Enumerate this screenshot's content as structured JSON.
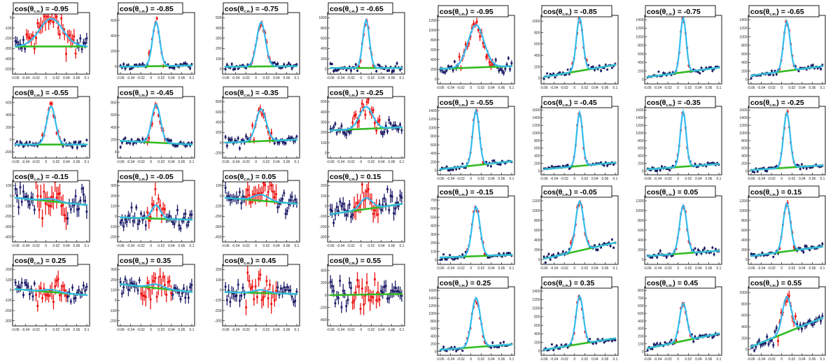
{
  "chart_data": {
    "type": "scatter",
    "x_tick_labels": [
      "-0.06",
      "-0.04",
      "-0.02",
      "0",
      "0.02",
      "0.04",
      "0.06",
      "0.1"
    ],
    "colors": {
      "data_points": "#1a1a66",
      "signal_points": "#ee1111",
      "signal_fit": "#33bbee",
      "background_fit": "#33bb22"
    },
    "panel_groups": [
      {
        "group": "left",
        "panels": [
          {
            "title": "cos(θ",
            "title_sub": "c.m.",
            "title_value": ") = -0.95",
            "yticks": [
              "-500",
              "-400",
              "-300",
              "-200",
              "-100",
              "0"
            ],
            "signal_height": 0.45,
            "noise": 0.16,
            "background": [
              0.45,
              0.45
            ],
            "fit_width": 0.16
          },
          {
            "title": "cos(θ",
            "title_sub": "c.m.",
            "title_value": ") = -0.85",
            "yticks": [
              "0",
              "200",
              "400",
              "600"
            ],
            "signal_height": 0.72,
            "noise": 0.06,
            "background": [
              0.12,
              0.14
            ],
            "fit_width": 0.05
          },
          {
            "title": "cos(θ",
            "title_sub": "c.m.",
            "title_value": ") = -0.75",
            "yticks": [
              "0",
              "100",
              "200",
              "300",
              "400",
              "500"
            ],
            "signal_height": 0.72,
            "noise": 0.06,
            "background": [
              0.12,
              0.13
            ],
            "fit_width": 0.06
          },
          {
            "title": "cos(θ",
            "title_sub": "c.m.",
            "title_value": ") = -0.65",
            "yticks": [
              "0",
              "200",
              "400",
              "600",
              "800",
              "1000"
            ],
            "signal_height": 0.78,
            "noise": 0.06,
            "background": [
              0.1,
              0.1
            ],
            "fit_width": 0.045
          },
          {
            "title": "cos(θ",
            "title_sub": "c.m.",
            "title_value": ") = -0.55",
            "yticks": [
              "-200",
              "0",
              "200",
              "400",
              "600"
            ],
            "signal_height": 0.62,
            "noise": 0.07,
            "background": [
              0.22,
              0.22
            ],
            "fit_width": 0.06
          },
          {
            "title": "cos(θ",
            "title_sub": "c.m.",
            "title_value": ") = -0.45",
            "yticks": [
              "0",
              "200",
              "400",
              "600",
              "800"
            ],
            "signal_height": 0.62,
            "noise": 0.07,
            "background": [
              0.28,
              0.22
            ],
            "fit_width": 0.06
          },
          {
            "title": "cos(θ",
            "title_sub": "c.m.",
            "title_value": ") = -0.35",
            "yticks": [
              "-200",
              "0",
              "200",
              "400",
              "600",
              "800"
            ],
            "signal_height": 0.52,
            "noise": 0.09,
            "background": [
              0.25,
              0.3
            ],
            "fit_width": 0.07
          },
          {
            "title": "cos(θ",
            "title_sub": "c.m.",
            "title_value": ") = -0.25",
            "yticks": [
              "0",
              "100",
              "200",
              "300",
              "400",
              "500"
            ],
            "signal_height": 0.36,
            "noise": 0.12,
            "background": [
              0.45,
              0.5
            ],
            "fit_width": 0.09
          },
          {
            "title": "cos(θ",
            "title_sub": "c.m.",
            "title_value": ") = -0.15",
            "yticks": [
              "-400",
              "-300",
              "-200",
              "-100",
              "0",
              "100"
            ],
            "signal_height": 0.04,
            "noise": 0.22,
            "background": [
              0.72,
              0.6
            ],
            "fit_width": 0.1
          },
          {
            "title": "cos(θ",
            "title_sub": "c.m.",
            "title_value": ") = -0.05",
            "yticks": [
              "-200",
              "-100",
              "0",
              "100",
              "200",
              "300"
            ],
            "signal_height": 0.22,
            "noise": 0.16,
            "background": [
              0.4,
              0.36
            ],
            "fit_width": 0.06
          },
          {
            "title": "cos(θ",
            "title_sub": "c.m.",
            "title_value": ") = 0.05",
            "yticks": [
              "-400",
              "-300",
              "-200",
              "-100",
              "0",
              "100"
            ],
            "signal_height": 0.1,
            "noise": 0.18,
            "background": [
              0.72,
              0.62
            ],
            "fit_width": 0.1
          },
          {
            "title": "cos(θ",
            "title_sub": "c.m.",
            "title_value": ") = 0.15",
            "yticks": [
              "-300",
              "-200",
              "-100",
              "0",
              "100",
              "200"
            ],
            "signal_height": 0.18,
            "noise": 0.2,
            "background": [
              0.45,
              0.62
            ],
            "fit_width": 0.08
          },
          {
            "title": "cos(θ",
            "title_sub": "c.m.",
            "title_value": ") = 0.25",
            "yticks": [
              "-300",
              "-200",
              "-100",
              "0",
              "100",
              "200"
            ],
            "signal_height": 0.04,
            "noise": 0.16,
            "background": [
              0.6,
              0.5
            ],
            "fit_width": 0.1
          },
          {
            "title": "cos(θ",
            "title_sub": "c.m.",
            "title_value": ") = 0.35",
            "yticks": [
              "-200",
              "-100",
              "0",
              "100",
              "200",
              "300"
            ],
            "signal_height": 0.06,
            "noise": 0.18,
            "background": [
              0.68,
              0.55
            ],
            "fit_width": 0.1
          },
          {
            "title": "cos(θ",
            "title_sub": "c.m.",
            "title_value": ") = 0.45",
            "yticks": [
              "-300",
              "-200",
              "-100",
              "0",
              "100",
              "200"
            ],
            "signal_height": 0.05,
            "noise": 0.18,
            "background": [
              0.55,
              0.52
            ],
            "fit_width": 0.1
          },
          {
            "title": "cos(θ",
            "title_sub": "c.m.",
            "title_value": ") = 0.55",
            "yticks": [
              "-400",
              "-200",
              "0",
              "200",
              "400"
            ],
            "signal_height": 0.0,
            "noise": 0.2,
            "background": [
              0.5,
              0.52
            ],
            "fit_width": 0.1
          }
        ]
      },
      {
        "group": "right",
        "panels": [
          {
            "title": "cos(θ",
            "title_sub": "c.m.",
            "title_value": ") = -0.95",
            "yticks": [
              "0",
              "200",
              "400",
              "600",
              "800",
              "1000",
              "1200"
            ],
            "signal_height": 0.62,
            "noise": 0.08,
            "background": [
              0.22,
              0.26
            ],
            "fit_width": 0.11
          },
          {
            "title": "cos(θ",
            "title_sub": "c.m.",
            "title_value": ") = -0.85",
            "yticks": [
              "0",
              "200",
              "400",
              "600",
              "800",
              "1000"
            ],
            "signal_height": 0.78,
            "noise": 0.04,
            "background": [
              0.1,
              0.28
            ],
            "fit_width": 0.045
          },
          {
            "title": "cos(θ",
            "title_sub": "c.m.",
            "title_value": ") = -0.75",
            "yticks": [
              "0",
              "200",
              "400",
              "600",
              "800",
              "1000",
              "1200",
              "1400"
            ],
            "signal_height": 0.8,
            "noise": 0.04,
            "background": [
              0.1,
              0.24
            ],
            "fit_width": 0.04
          },
          {
            "title": "cos(θ",
            "title_sub": "c.m.",
            "title_value": ") = -0.65",
            "yticks": [
              "0",
              "200",
              "400",
              "600",
              "800",
              "1000",
              "1200",
              "1400"
            ],
            "signal_height": 0.72,
            "noise": 0.04,
            "background": [
              0.12,
              0.26
            ],
            "fit_width": 0.045
          },
          {
            "title": "cos(θ",
            "title_sub": "c.m.",
            "title_value": ") = -0.55",
            "yticks": [
              "0",
              "200",
              "400",
              "600",
              "800",
              "1000",
              "1200",
              "1400"
            ],
            "signal_height": 0.8,
            "noise": 0.04,
            "background": [
              0.08,
              0.2
            ],
            "fit_width": 0.045
          },
          {
            "title": "cos(θ",
            "title_sub": "c.m.",
            "title_value": ") = -0.45",
            "yticks": [
              "0",
              "200",
              "400",
              "600",
              "800",
              "1000",
              "1200",
              "1400",
              "1600"
            ],
            "signal_height": 0.78,
            "noise": 0.04,
            "background": [
              0.08,
              0.18
            ],
            "fit_width": 0.04
          },
          {
            "title": "cos(θ",
            "title_sub": "c.m.",
            "title_value": ") = -0.35",
            "yticks": [
              "0",
              "200",
              "400",
              "600",
              "800",
              "1000",
              "1200",
              "1400",
              "1600"
            ],
            "signal_height": 0.8,
            "noise": 0.04,
            "background": [
              0.08,
              0.16
            ],
            "fit_width": 0.04
          },
          {
            "title": "cos(θ",
            "title_sub": "c.m.",
            "title_value": ") = -0.25",
            "yticks": [
              "0",
              "200",
              "400",
              "600",
              "800",
              "1000",
              "1200",
              "1400",
              "1600"
            ],
            "signal_height": 0.8,
            "noise": 0.04,
            "background": [
              0.07,
              0.14
            ],
            "fit_width": 0.045
          },
          {
            "title": "cos(θ",
            "title_sub": "c.m.",
            "title_value": ") = -0.15",
            "yticks": [
              "0",
              "100",
              "200",
              "300",
              "400",
              "500",
              "600",
              "700"
            ],
            "signal_height": 0.72,
            "noise": 0.04,
            "background": [
              0.1,
              0.14
            ],
            "fit_width": 0.055
          },
          {
            "title": "cos(θ",
            "title_sub": "c.m.",
            "title_value": ") = -0.05",
            "yticks": [
              "0",
              "200",
              "400",
              "600",
              "800",
              "1000",
              "1200"
            ],
            "signal_height": 0.72,
            "noise": 0.05,
            "background": [
              0.08,
              0.32
            ],
            "fit_width": 0.055
          },
          {
            "title": "cos(θ",
            "title_sub": "c.m.",
            "title_value": ") = 0.05",
            "yticks": [
              "0",
              "200",
              "400",
              "600",
              "800",
              "1000",
              "1200"
            ],
            "signal_height": 0.7,
            "noise": 0.05,
            "background": [
              0.12,
              0.2
            ],
            "fit_width": 0.05
          },
          {
            "title": "cos(θ",
            "title_sub": "c.m.",
            "title_value": ") = 0.15",
            "yticks": [
              "0",
              "200",
              "400",
              "600",
              "800",
              "1000",
              "1200"
            ],
            "signal_height": 0.7,
            "noise": 0.05,
            "background": [
              0.12,
              0.26
            ],
            "fit_width": 0.05
          },
          {
            "title": "cos(θ",
            "title_sub": "c.m.",
            "title_value": ") = 0.25",
            "yticks": [
              "0",
              "200",
              "400",
              "600",
              "800",
              "1000",
              "1200",
              "1400",
              "1600"
            ],
            "signal_height": 0.72,
            "noise": 0.04,
            "background": [
              0.08,
              0.16
            ],
            "fit_width": 0.06
          },
          {
            "title": "cos(θ",
            "title_sub": "c.m.",
            "title_value": ") = 0.35",
            "yticks": [
              "0",
              "200",
              "400",
              "600",
              "800",
              "1000",
              "1200",
              "1400"
            ],
            "signal_height": 0.7,
            "noise": 0.04,
            "background": [
              0.08,
              0.25
            ],
            "fit_width": 0.05
          },
          {
            "title": "cos(θ",
            "title_sub": "c.m.",
            "title_value": ") = 0.45",
            "yticks": [
              "0",
              "100",
              "200",
              "300",
              "400",
              "500",
              "600",
              "700",
              "800"
            ],
            "signal_height": 0.55,
            "noise": 0.05,
            "background": [
              0.1,
              0.32
            ],
            "fit_width": 0.05
          },
          {
            "title": "cos(θ",
            "title_sub": "c.m.",
            "title_value": ") = 0.55",
            "yticks": [
              "0",
              "200",
              "400",
              "600",
              "800",
              "1000"
            ],
            "signal_height": 0.52,
            "noise": 0.09,
            "background": [
              0.12,
              0.55
            ],
            "fit_width": 0.06
          }
        ]
      }
    ]
  }
}
